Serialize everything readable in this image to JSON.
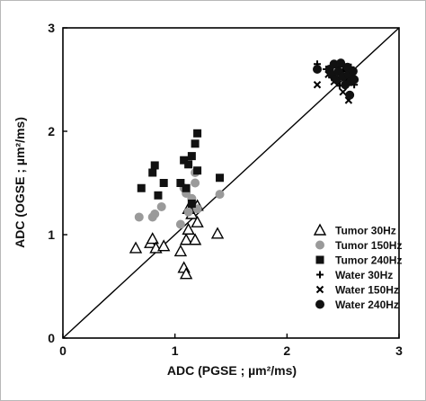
{
  "chart_data": {
    "type": "scatter",
    "xlabel": "ADC (PGSE ; µm²/ms)",
    "ylabel": "ADC (OGSE ; µm²/ms)",
    "xlim": [
      0,
      3
    ],
    "ylim": [
      0,
      3
    ],
    "xticks": [
      "0",
      "1",
      "2",
      "3"
    ],
    "yticks": [
      "0",
      "1",
      "2",
      "3"
    ],
    "identity_line": true,
    "legend_position": "right, lower-middle",
    "series": [
      {
        "name": "Tumor 30Hz",
        "marker": "open-triangle",
        "color": "#000000",
        "points": [
          [
            0.65,
            0.87
          ],
          [
            0.78,
            0.92
          ],
          [
            0.8,
            0.96
          ],
          [
            0.83,
            0.87
          ],
          [
            0.9,
            0.89
          ],
          [
            1.05,
            0.84
          ],
          [
            1.08,
            0.68
          ],
          [
            1.1,
            0.62
          ],
          [
            1.1,
            0.95
          ],
          [
            1.12,
            1.05
          ],
          [
            1.15,
            1.2
          ],
          [
            1.12,
            1.25
          ],
          [
            1.18,
            0.95
          ],
          [
            1.2,
            1.12
          ],
          [
            1.2,
            1.28
          ],
          [
            1.38,
            1.01
          ]
        ]
      },
      {
        "name": "Tumor 150Hz",
        "marker": "filled-circle",
        "color": "#9a9a9a",
        "points": [
          [
            0.68,
            1.17
          ],
          [
            0.8,
            1.17
          ],
          [
            0.82,
            1.2
          ],
          [
            0.88,
            1.27
          ],
          [
            1.05,
            1.1
          ],
          [
            1.08,
            1.45
          ],
          [
            1.1,
            1.4
          ],
          [
            1.12,
            1.22
          ],
          [
            1.15,
            1.35
          ],
          [
            1.18,
            1.5
          ],
          [
            1.18,
            1.6
          ],
          [
            1.2,
            1.25
          ],
          [
            1.4,
            1.39
          ]
        ]
      },
      {
        "name": "Tumor 240Hz",
        "marker": "filled-square",
        "color": "#111111",
        "points": [
          [
            0.7,
            1.45
          ],
          [
            0.8,
            1.6
          ],
          [
            0.82,
            1.67
          ],
          [
            0.85,
            1.38
          ],
          [
            0.9,
            1.5
          ],
          [
            1.05,
            1.5
          ],
          [
            1.08,
            1.72
          ],
          [
            1.1,
            1.45
          ],
          [
            1.12,
            1.68
          ],
          [
            1.15,
            1.76
          ],
          [
            1.15,
            1.3
          ],
          [
            1.18,
            1.88
          ],
          [
            1.2,
            1.98
          ],
          [
            1.2,
            1.62
          ],
          [
            1.4,
            1.55
          ]
        ]
      },
      {
        "name": "Water 30Hz",
        "marker": "plus",
        "color": "#000000",
        "points": [
          [
            2.27,
            2.65
          ],
          [
            2.35,
            2.6
          ],
          [
            2.4,
            2.52
          ],
          [
            2.44,
            2.62
          ],
          [
            2.47,
            2.44
          ],
          [
            2.5,
            2.58
          ],
          [
            2.53,
            2.5
          ],
          [
            2.57,
            2.62
          ],
          [
            2.6,
            2.45
          ]
        ]
      },
      {
        "name": "Water 150Hz",
        "marker": "cross",
        "color": "#000000",
        "points": [
          [
            2.27,
            2.45
          ],
          [
            2.37,
            2.55
          ],
          [
            2.42,
            2.48
          ],
          [
            2.45,
            2.65
          ],
          [
            2.5,
            2.38
          ],
          [
            2.52,
            2.6
          ],
          [
            2.55,
            2.3
          ],
          [
            2.58,
            2.52
          ]
        ]
      },
      {
        "name": "Water 240Hz",
        "marker": "filled-circle",
        "color": "#111111",
        "points": [
          [
            2.27,
            2.6
          ],
          [
            2.38,
            2.6
          ],
          [
            2.4,
            2.55
          ],
          [
            2.42,
            2.65
          ],
          [
            2.44,
            2.5
          ],
          [
            2.46,
            2.58
          ],
          [
            2.48,
            2.66
          ],
          [
            2.5,
            2.53
          ],
          [
            2.52,
            2.45
          ],
          [
            2.54,
            2.62
          ],
          [
            2.55,
            2.55
          ],
          [
            2.57,
            2.48
          ],
          [
            2.59,
            2.58
          ],
          [
            2.56,
            2.35
          ],
          [
            2.6,
            2.5
          ]
        ]
      }
    ]
  }
}
